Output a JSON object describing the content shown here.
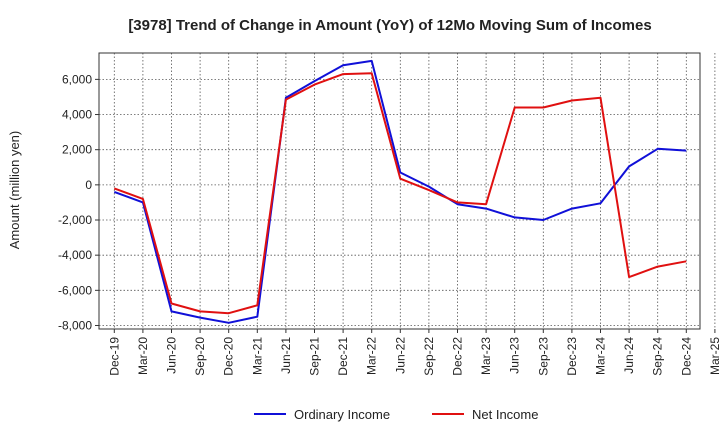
{
  "chart_data": {
    "type": "line",
    "title": "[3978]  Trend of Change in Amount (YoY) of 12Mo Moving Sum of Incomes",
    "xlabel": "",
    "ylabel": "Amount (million yen)",
    "categories": [
      "Dec-19",
      "Mar-20",
      "Jun-20",
      "Sep-20",
      "Dec-20",
      "Mar-21",
      "Jun-21",
      "Sep-21",
      "Dec-21",
      "Mar-22",
      "Jun-22",
      "Sep-22",
      "Dec-22",
      "Mar-23",
      "Jun-23",
      "Sep-23",
      "Dec-23",
      "Mar-24",
      "Jun-24",
      "Sep-24",
      "Dec-24",
      "Mar-25"
    ],
    "ylim": [
      -8200,
      7500
    ],
    "yticks": [
      -8000,
      -6000,
      -4000,
      -2000,
      0,
      2000,
      4000,
      6000
    ],
    "ytick_labels": [
      "-8,000",
      "-6,000",
      "-4,000",
      "-2,000",
      "0",
      "2,000",
      "4,000",
      "6,000"
    ],
    "grid": true,
    "legend_position": "bottom",
    "series": [
      {
        "name": "Ordinary Income",
        "color": "#1010d8",
        "values": [
          -400,
          -1000,
          -7200,
          -7550,
          -7850,
          -7500,
          4950,
          5900,
          6800,
          7050,
          700,
          -100,
          -1100,
          -1350,
          -1850,
          -2000,
          -1350,
          -1050,
          1050,
          2050,
          1950,
          null
        ]
      },
      {
        "name": "Net Income",
        "color": "#e01010",
        "values": [
          -200,
          -800,
          -6750,
          -7200,
          -7300,
          -6850,
          4850,
          5700,
          6300,
          6350,
          350,
          -300,
          -1000,
          -1100,
          4400,
          4400,
          4800,
          4950,
          -5250,
          -4650,
          -4350,
          null
        ]
      }
    ]
  }
}
